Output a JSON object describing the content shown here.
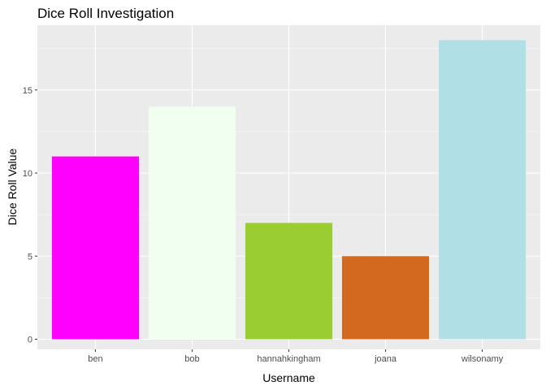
{
  "chart_data": {
    "type": "bar",
    "title": "Dice Roll Investigation",
    "xlabel": "Username",
    "ylabel": "Dice Roll Value",
    "categories": [
      "ben",
      "bob",
      "hannahkingham",
      "joana",
      "wilsonamy"
    ],
    "values": [
      11,
      14,
      7,
      5,
      18
    ],
    "colors": [
      "#ff00ff",
      "#f0fff0",
      "#9acd32",
      "#d2691e",
      "#b0e0e6"
    ],
    "ylim": [
      0,
      18.9
    ],
    "yticks": [
      0,
      5,
      10,
      15
    ],
    "grid": true,
    "panel_background": "#ebebeb",
    "grid_color": "#ffffff",
    "legend": "none"
  }
}
